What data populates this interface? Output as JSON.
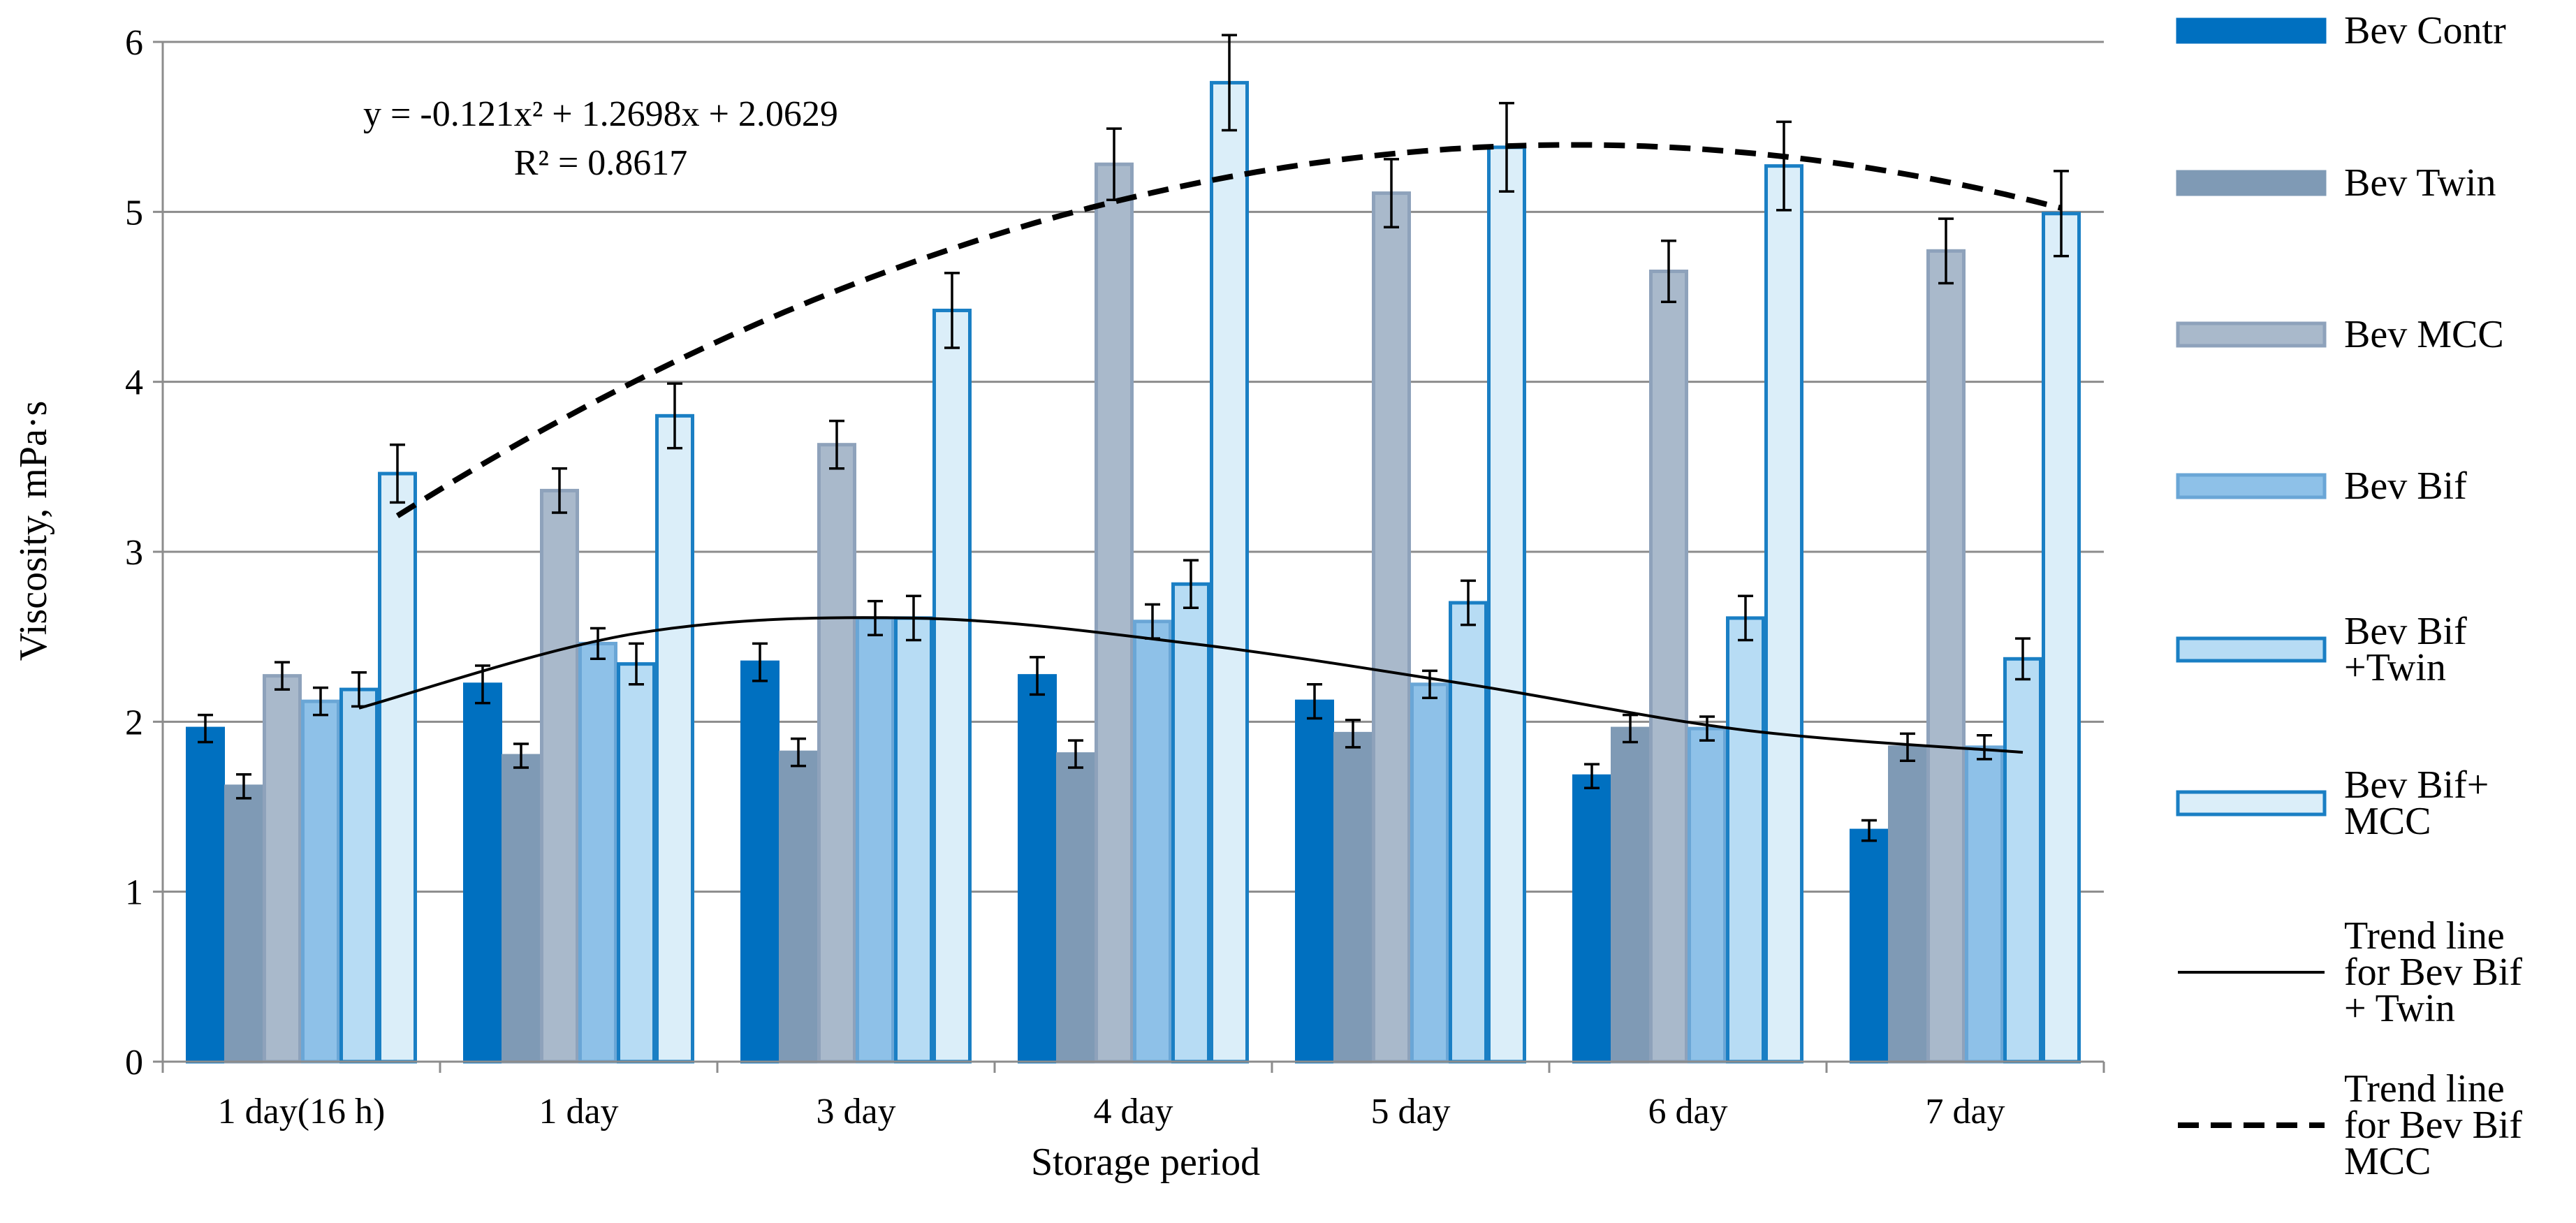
{
  "chart_data": {
    "type": "bar",
    "title": "",
    "xlabel": "Storage period",
    "ylabel": "Viscosity, mPa·s",
    "ylim": [
      0,
      6
    ],
    "yticks": [
      0,
      1,
      2,
      3,
      4,
      5,
      6
    ],
    "grid": true,
    "legend_position": "right",
    "categories": [
      "1 day(16 h)",
      "1 day",
      "3 day",
      "4 day",
      "5 day",
      "6 day",
      "7 day"
    ],
    "series": [
      {
        "name": "Bev Contr",
        "values": [
          1.96,
          2.22,
          2.35,
          2.27,
          2.12,
          1.68,
          1.36
        ],
        "errors": [
          0.08,
          0.11,
          0.11,
          0.11,
          0.1,
          0.07,
          0.06
        ],
        "fill": "#0070c0",
        "stroke": "#0070c0"
      },
      {
        "name": "Bev Twin",
        "values": [
          1.62,
          1.8,
          1.82,
          1.81,
          1.93,
          1.96,
          1.85
        ],
        "errors": [
          0.07,
          0.07,
          0.08,
          0.08,
          0.08,
          0.08,
          0.08
        ],
        "fill": "#7f9ab5",
        "stroke": "#7f9ab5"
      },
      {
        "name": "Bev MCC",
        "values": [
          2.27,
          3.36,
          3.63,
          5.28,
          5.11,
          4.65,
          4.77
        ],
        "errors": [
          0.08,
          0.13,
          0.14,
          0.21,
          0.2,
          0.18,
          0.19
        ],
        "fill": "#a9b9cb",
        "stroke": "#8ea2bb"
      },
      {
        "name": "Bev Bif",
        "values": [
          2.12,
          2.46,
          2.61,
          2.59,
          2.22,
          1.96,
          1.85
        ],
        "errors": [
          0.08,
          0.09,
          0.1,
          0.1,
          0.08,
          0.07,
          0.07
        ],
        "fill": "#8ec1e8",
        "stroke": "#6aa6d6"
      },
      {
        "name": "Bev Bif +Twin",
        "values": [
          2.19,
          2.34,
          2.61,
          2.81,
          2.7,
          2.61,
          2.37
        ],
        "errors": [
          0.1,
          0.12,
          0.13,
          0.14,
          0.13,
          0.13,
          0.12
        ],
        "fill": "#b7dcf4",
        "stroke": "#1a7fc4"
      },
      {
        "name": "Bev Bif+ MCC",
        "values": [
          3.46,
          3.8,
          4.42,
          5.76,
          5.38,
          5.27,
          4.99
        ],
        "errors": [
          0.17,
          0.19,
          0.22,
          0.28,
          0.26,
          0.26,
          0.25
        ],
        "fill": "#dbeef9",
        "stroke": "#1a7fc4"
      }
    ],
    "trendlines": [
      {
        "name": "Trend line for Bev Bif + Twin",
        "for_series": "Bev Bif +Twin",
        "style": "solid",
        "from_category": 0,
        "to_category": 6,
        "points": [
          2.08,
          2.52,
          2.61,
          2.46,
          2.22,
          1.95,
          1.82
        ]
      },
      {
        "name": "Trend line for Bev Bif MCC",
        "for_series": "Bev Bif+ MCC",
        "style": "dashed",
        "type": "polynomial",
        "equation": "y = -0.121x² + 1.2698x + 2.0629",
        "r_squared": "R² = 0.8617",
        "coefficients": [
          -0.121,
          1.2698,
          2.0629
        ]
      }
    ],
    "annotations": {
      "equation": "y = -0.121x² + 1.2698x + 2.0629",
      "r_squared": "R² = 0.8617"
    }
  },
  "legend": [
    {
      "lines": [
        "Bev Contr"
      ],
      "kind": "box",
      "fill": "#0070c0",
      "stroke": "#0070c0"
    },
    {
      "lines": [
        "Bev Twin"
      ],
      "kind": "box",
      "fill": "#7f9ab5",
      "stroke": "#7f9ab5"
    },
    {
      "lines": [
        "Bev MCC"
      ],
      "kind": "box",
      "fill": "#a9b9cb",
      "stroke": "#8ea2bb"
    },
    {
      "lines": [
        "Bev Bif"
      ],
      "kind": "box",
      "fill": "#8ec1e8",
      "stroke": "#6aa6d6"
    },
    {
      "lines": [
        "Bev Bif",
        "+Twin"
      ],
      "kind": "box",
      "fill": "#b7dcf4",
      "stroke": "#1a7fc4"
    },
    {
      "lines": [
        "Bev Bif+",
        "MCC"
      ],
      "kind": "box",
      "fill": "#dbeef9",
      "stroke": "#1a7fc4"
    },
    {
      "lines": [
        "Trend line",
        "for Bev Bif",
        "+ Twin"
      ],
      "kind": "solid-line"
    },
    {
      "lines": [
        "Trend line",
        "for Bev Bif",
        "MCC"
      ],
      "kind": "dashed-line"
    }
  ]
}
